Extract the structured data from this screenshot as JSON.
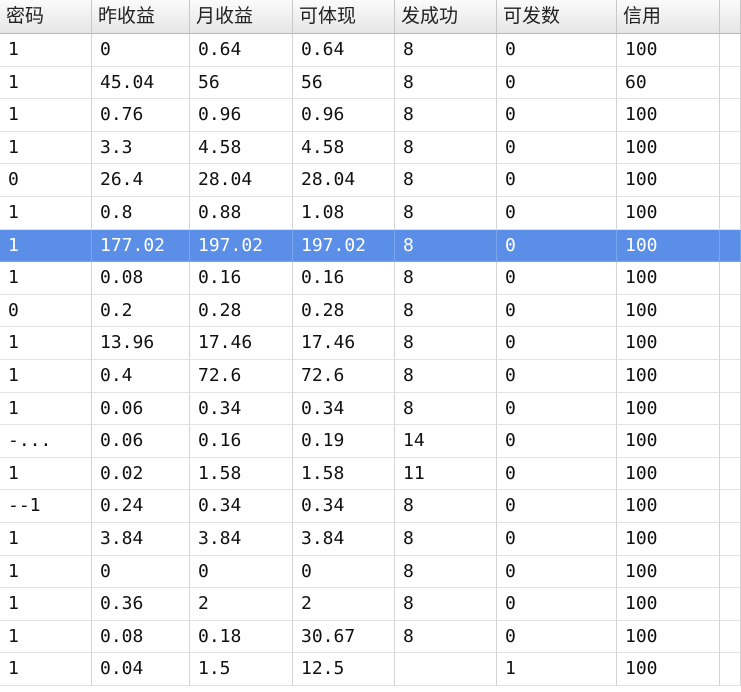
{
  "table": {
    "headers": [
      "密码",
      "昨收益",
      "月收益",
      "可体现",
      "发成功",
      "可发数",
      "信用"
    ],
    "rows": [
      [
        "1",
        "0",
        "0.64",
        "0.64",
        "8",
        "0",
        "100"
      ],
      [
        "1",
        "45.04",
        "56",
        "56",
        "8",
        "0",
        "60"
      ],
      [
        "1",
        "0.76",
        "0.96",
        "0.96",
        "8",
        "0",
        "100"
      ],
      [
        "1",
        "3.3",
        "4.58",
        "4.58",
        "8",
        "0",
        "100"
      ],
      [
        "0",
        "26.4",
        "28.04",
        "28.04",
        "8",
        "0",
        "100"
      ],
      [
        "1",
        "0.8",
        "0.88",
        "1.08",
        "8",
        "0",
        "100"
      ],
      [
        "1",
        "177.02",
        "197.02",
        "197.02",
        "8",
        "0",
        "100"
      ],
      [
        "1",
        "0.08",
        "0.16",
        "0.16",
        "8",
        "0",
        "100"
      ],
      [
        "0",
        "0.2",
        "0.28",
        "0.28",
        "8",
        "0",
        "100"
      ],
      [
        "1",
        "13.96",
        "17.46",
        "17.46",
        "8",
        "0",
        "100"
      ],
      [
        "1",
        "0.4",
        "72.6",
        "72.6",
        "8",
        "0",
        "100"
      ],
      [
        "1",
        "0.06",
        "0.34",
        "0.34",
        "8",
        "0",
        "100"
      ],
      [
        "-...",
        "0.06",
        "0.16",
        "0.19",
        "14",
        "0",
        "100"
      ],
      [
        "1",
        "0.02",
        "1.58",
        "1.58",
        "11",
        "0",
        "100"
      ],
      [
        "--1",
        "0.24",
        "0.34",
        "0.34",
        "8",
        "0",
        "100"
      ],
      [
        "1",
        "3.84",
        "3.84",
        "3.84",
        "8",
        "0",
        "100"
      ],
      [
        "1",
        "0",
        "0",
        "0",
        "8",
        "0",
        "100"
      ],
      [
        "1",
        "0.36",
        "2",
        "2",
        "8",
        "0",
        "100"
      ],
      [
        "1",
        "0.08",
        "0.18",
        "30.67",
        "8",
        "0",
        "100"
      ],
      [
        "1",
        "0.04",
        "1.5",
        "12.5",
        null,
        "1",
        "100"
      ]
    ],
    "selected_row": 6
  }
}
